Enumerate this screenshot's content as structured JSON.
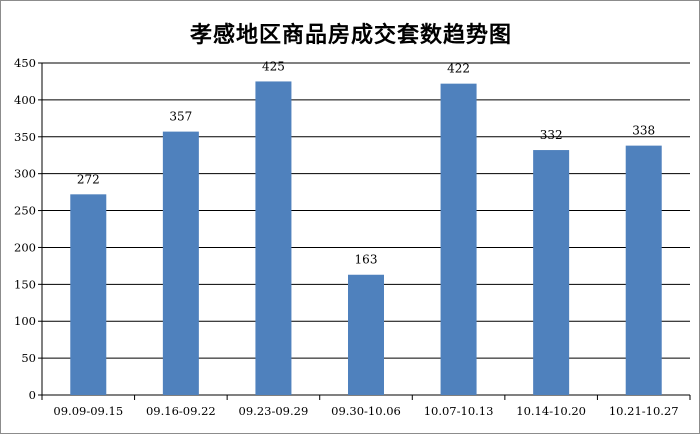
{
  "chart_data": {
    "type": "bar",
    "title": "孝感地区商品房成交套数趋势图",
    "categories": [
      "09.09-09.15",
      "09.16-09.22",
      "09.23-09.29",
      "09.30-10.06",
      "10.07-10.13",
      "10.14-10.20",
      "10.21-10.27"
    ],
    "values": [
      272,
      357,
      425,
      163,
      422,
      332,
      338
    ],
    "ylim": [
      0,
      450
    ],
    "yticks": [
      0,
      50,
      100,
      150,
      200,
      250,
      300,
      350,
      400,
      450
    ],
    "grid": true,
    "bar_color": "#4f81bd",
    "xlabel": "",
    "ylabel": ""
  }
}
